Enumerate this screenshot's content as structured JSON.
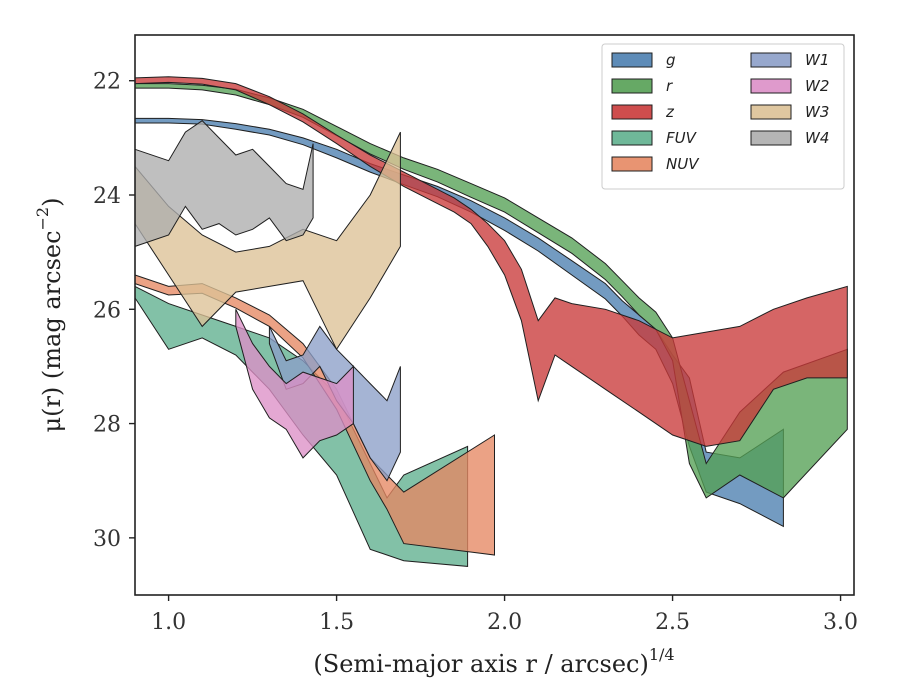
{
  "chart_data": {
    "type": "area",
    "xlabel": "(Semi-major axis r / arcsec)",
    "xlabel_sup": "1/4",
    "ylabel": "μ(r) (mag arcsec",
    "ylabel_sup": "−2",
    "ylabel_close": ")",
    "xlim": [
      0.9,
      3.04
    ],
    "ylim": [
      31.0,
      21.2
    ],
    "y_inverted": true,
    "xticks": [
      1.0,
      1.5,
      2.0,
      2.5,
      3.0
    ],
    "xtick_labels": [
      "1.0",
      "1.5",
      "2.0",
      "2.5",
      "3.0"
    ],
    "yticks": [
      22,
      24,
      26,
      28,
      30
    ],
    "ytick_labels": [
      "22",
      "24",
      "26",
      "28",
      "30"
    ],
    "grid": false,
    "legend_position": "top-right",
    "legend_columns": 2,
    "series": [
      {
        "name": "g",
        "label": "g",
        "color": "#4c7fb0",
        "x": [
          0.9,
          1.0,
          1.1,
          1.2,
          1.3,
          1.4,
          1.5,
          1.6,
          1.7,
          1.8,
          1.9,
          2.0,
          2.1,
          2.2,
          2.3,
          2.35,
          2.4,
          2.45,
          2.5,
          2.55,
          2.6,
          2.7,
          2.83
        ],
        "lo": [
          22.66,
          22.66,
          22.68,
          22.75,
          22.85,
          23.0,
          23.2,
          23.45,
          23.65,
          23.85,
          24.1,
          24.4,
          24.75,
          25.15,
          25.55,
          25.85,
          26.1,
          26.35,
          26.8,
          27.2,
          28.5,
          28.6,
          28.1
        ],
        "hi": [
          22.74,
          22.74,
          22.76,
          22.85,
          22.95,
          23.12,
          23.35,
          23.6,
          23.82,
          24.03,
          24.3,
          24.62,
          24.98,
          25.4,
          25.82,
          26.12,
          26.45,
          26.7,
          27.3,
          28.4,
          29.2,
          29.4,
          29.8
        ]
      },
      {
        "name": "r",
        "label": "r",
        "color": "#55a054",
        "x": [
          0.9,
          1.0,
          1.1,
          1.2,
          1.3,
          1.4,
          1.5,
          1.6,
          1.7,
          1.8,
          1.9,
          2.0,
          2.1,
          2.2,
          2.3,
          2.35,
          2.4,
          2.45,
          2.5,
          2.55,
          2.6,
          2.7,
          2.83,
          3.02
        ],
        "lo": [
          22.05,
          22.05,
          22.08,
          22.15,
          22.3,
          22.5,
          22.8,
          23.1,
          23.35,
          23.55,
          23.8,
          24.05,
          24.4,
          24.75,
          25.2,
          25.5,
          25.8,
          26.05,
          26.5,
          27.6,
          28.7,
          27.8,
          27.1,
          26.7
        ],
        "hi": [
          22.13,
          22.13,
          22.16,
          22.25,
          22.42,
          22.64,
          22.96,
          23.28,
          23.55,
          23.77,
          24.04,
          24.3,
          24.66,
          25.02,
          25.48,
          25.78,
          26.1,
          26.35,
          26.9,
          28.7,
          29.3,
          28.9,
          29.3,
          28.1
        ]
      },
      {
        "name": "z",
        "label": "z",
        "color": "#c93a3a",
        "x": [
          0.9,
          1.0,
          1.1,
          1.2,
          1.3,
          1.4,
          1.5,
          1.6,
          1.7,
          1.8,
          1.85,
          1.9,
          1.95,
          2.0,
          2.05,
          2.1,
          2.15,
          2.2,
          2.3,
          2.4,
          2.5,
          2.6,
          2.7,
          2.8,
          2.9,
          3.02
        ],
        "lo": [
          21.95,
          21.93,
          21.96,
          22.05,
          22.28,
          22.58,
          22.95,
          23.3,
          23.6,
          23.9,
          24.05,
          24.25,
          24.5,
          24.8,
          25.3,
          26.2,
          25.8,
          25.9,
          26.0,
          26.2,
          26.5,
          26.4,
          26.3,
          26.0,
          25.8,
          25.6
        ],
        "hi": [
          22.05,
          22.03,
          22.06,
          22.16,
          22.42,
          22.72,
          23.1,
          23.5,
          23.85,
          24.15,
          24.3,
          24.5,
          24.9,
          25.4,
          26.2,
          27.6,
          26.8,
          27.0,
          27.4,
          27.8,
          28.2,
          28.4,
          28.3,
          27.4,
          27.2,
          27.2
        ]
      },
      {
        "name": "FUV",
        "label": "FUV",
        "color": "#5fb08e",
        "x": [
          0.9,
          1.0,
          1.1,
          1.2,
          1.3,
          1.4,
          1.5,
          1.6,
          1.65,
          1.7,
          1.89
        ],
        "lo": [
          25.6,
          25.9,
          26.1,
          26.3,
          26.5,
          26.9,
          27.5,
          28.7,
          29.3,
          28.9,
          28.4
        ],
        "hi": [
          25.8,
          26.7,
          26.5,
          26.8,
          27.4,
          28.2,
          28.9,
          30.2,
          30.3,
          30.4,
          30.5
        ]
      },
      {
        "name": "NUV",
        "label": "NUV",
        "color": "#e58863",
        "x": [
          0.9,
          1.0,
          1.1,
          1.2,
          1.3,
          1.4,
          1.5,
          1.6,
          1.65,
          1.7,
          1.97
        ],
        "lo": [
          25.4,
          25.6,
          25.55,
          25.8,
          26.1,
          26.6,
          27.4,
          28.6,
          28.9,
          29.2,
          28.2
        ],
        "hi": [
          25.55,
          25.75,
          25.72,
          25.98,
          26.3,
          26.85,
          27.75,
          29.0,
          29.5,
          30.1,
          30.3
        ]
      },
      {
        "name": "W1",
        "label": "W1",
        "color": "#8c9fc8",
        "x": [
          1.3,
          1.35,
          1.4,
          1.45,
          1.5,
          1.55,
          1.6,
          1.65,
          1.69
        ],
        "lo": [
          26.3,
          26.9,
          26.8,
          26.3,
          26.7,
          27.0,
          27.3,
          27.6,
          27.0
        ],
        "hi": [
          26.6,
          27.4,
          27.3,
          27.0,
          27.6,
          28.0,
          28.6,
          29.0,
          28.5
        ]
      },
      {
        "name": "W2",
        "label": "W2",
        "color": "#dc8fc7",
        "x": [
          1.2,
          1.25,
          1.3,
          1.35,
          1.4,
          1.45,
          1.5,
          1.55
        ],
        "lo": [
          26.0,
          26.6,
          27.0,
          27.3,
          27.1,
          27.2,
          27.3,
          27.0
        ],
        "hi": [
          26.3,
          27.4,
          27.9,
          28.1,
          28.6,
          28.3,
          28.2,
          28.0
        ]
      },
      {
        "name": "W3",
        "label": "W3",
        "color": "#dcc196",
        "x": [
          0.9,
          1.0,
          1.1,
          1.2,
          1.3,
          1.4,
          1.5,
          1.6,
          1.69
        ],
        "lo": [
          23.5,
          24.2,
          24.7,
          25.0,
          24.9,
          24.6,
          24.8,
          24.0,
          22.9
        ],
        "hi": [
          24.5,
          25.4,
          26.3,
          25.7,
          25.6,
          25.5,
          26.7,
          25.8,
          24.9
        ]
      },
      {
        "name": "W4",
        "label": "W4",
        "color": "#adadad",
        "x": [
          0.9,
          1.0,
          1.05,
          1.1,
          1.15,
          1.2,
          1.25,
          1.3,
          1.35,
          1.4,
          1.43
        ],
        "lo": [
          23.2,
          23.4,
          22.9,
          22.7,
          23.0,
          23.3,
          23.2,
          23.5,
          23.8,
          23.9,
          23.1
        ],
        "hi": [
          24.9,
          24.7,
          24.2,
          24.6,
          24.5,
          24.7,
          24.6,
          24.4,
          24.8,
          24.7,
          24.4
        ]
      }
    ]
  }
}
